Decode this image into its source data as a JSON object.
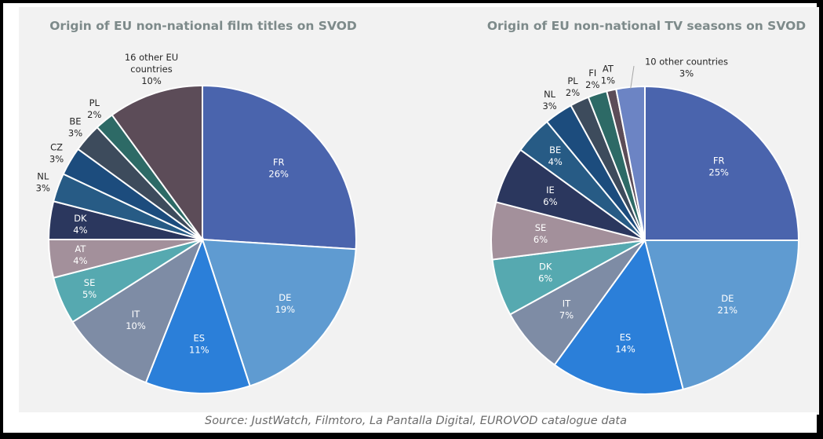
{
  "source": "Source: JustWatch, Filmtoro, La Pantalla Digital, EUROVOD catalogue data",
  "chart_data": [
    {
      "type": "pie",
      "title": "Origin of EU non-national film titles on SVOD",
      "slices": [
        {
          "label": "FR",
          "value": 26,
          "display": "26%",
          "color": "#4a64ad"
        },
        {
          "label": "DE",
          "value": 19,
          "display": "19%",
          "color": "#5f9bd1"
        },
        {
          "label": "ES",
          "value": 11,
          "display": "11%",
          "color": "#2b7fd9"
        },
        {
          "label": "IT",
          "value": 10,
          "display": "10%",
          "color": "#7e8ca5"
        },
        {
          "label": "SE",
          "value": 5,
          "display": "5%",
          "color": "#56a9b0"
        },
        {
          "label": "AT",
          "value": 4,
          "display": "4%",
          "color": "#a3909b"
        },
        {
          "label": "DK",
          "value": 4,
          "display": "4%",
          "color": "#2b375e"
        },
        {
          "label": "NL",
          "value": 3,
          "display": "3%",
          "color": "#275b85"
        },
        {
          "label": "CZ",
          "value": 3,
          "display": "3%",
          "color": "#1c4c7d"
        },
        {
          "label": "BE",
          "value": 3,
          "display": "3%",
          "color": "#3d4b5c"
        },
        {
          "label": "PL",
          "value": 2,
          "display": "2%",
          "color": "#2d6a66"
        },
        {
          "label": "16 other EU countries",
          "value": 10,
          "display": "10%",
          "color": "#5c4c58"
        }
      ]
    },
    {
      "type": "pie",
      "title": "Origin of EU non-national TV seasons on SVOD",
      "slices": [
        {
          "label": "FR",
          "value": 25,
          "display": "25%",
          "color": "#4a64ad"
        },
        {
          "label": "DE",
          "value": 21,
          "display": "21%",
          "color": "#5f9bd1"
        },
        {
          "label": "ES",
          "value": 14,
          "display": "14%",
          "color": "#2b7fd9"
        },
        {
          "label": "IT",
          "value": 7,
          "display": "7%",
          "color": "#7e8ca5"
        },
        {
          "label": "DK",
          "value": 6,
          "display": "6%",
          "color": "#56a9b0"
        },
        {
          "label": "SE",
          "value": 6,
          "display": "6%",
          "color": "#a3909b"
        },
        {
          "label": "IE",
          "value": 6,
          "display": "6%",
          "color": "#2b375e"
        },
        {
          "label": "BE",
          "value": 4,
          "display": "4%",
          "color": "#275b85"
        },
        {
          "label": "NL",
          "value": 3,
          "display": "3%",
          "color": "#1c4c7d"
        },
        {
          "label": "PL",
          "value": 2,
          "display": "2%",
          "color": "#3d4b5c"
        },
        {
          "label": "FI",
          "value": 2,
          "display": "2%",
          "color": "#2d6a66"
        },
        {
          "label": "AT",
          "value": 1,
          "display": "1%",
          "color": "#5c4c58"
        },
        {
          "label": "10 other countries",
          "value": 3,
          "display": "3%",
          "color": "#6c84c4"
        }
      ]
    }
  ]
}
